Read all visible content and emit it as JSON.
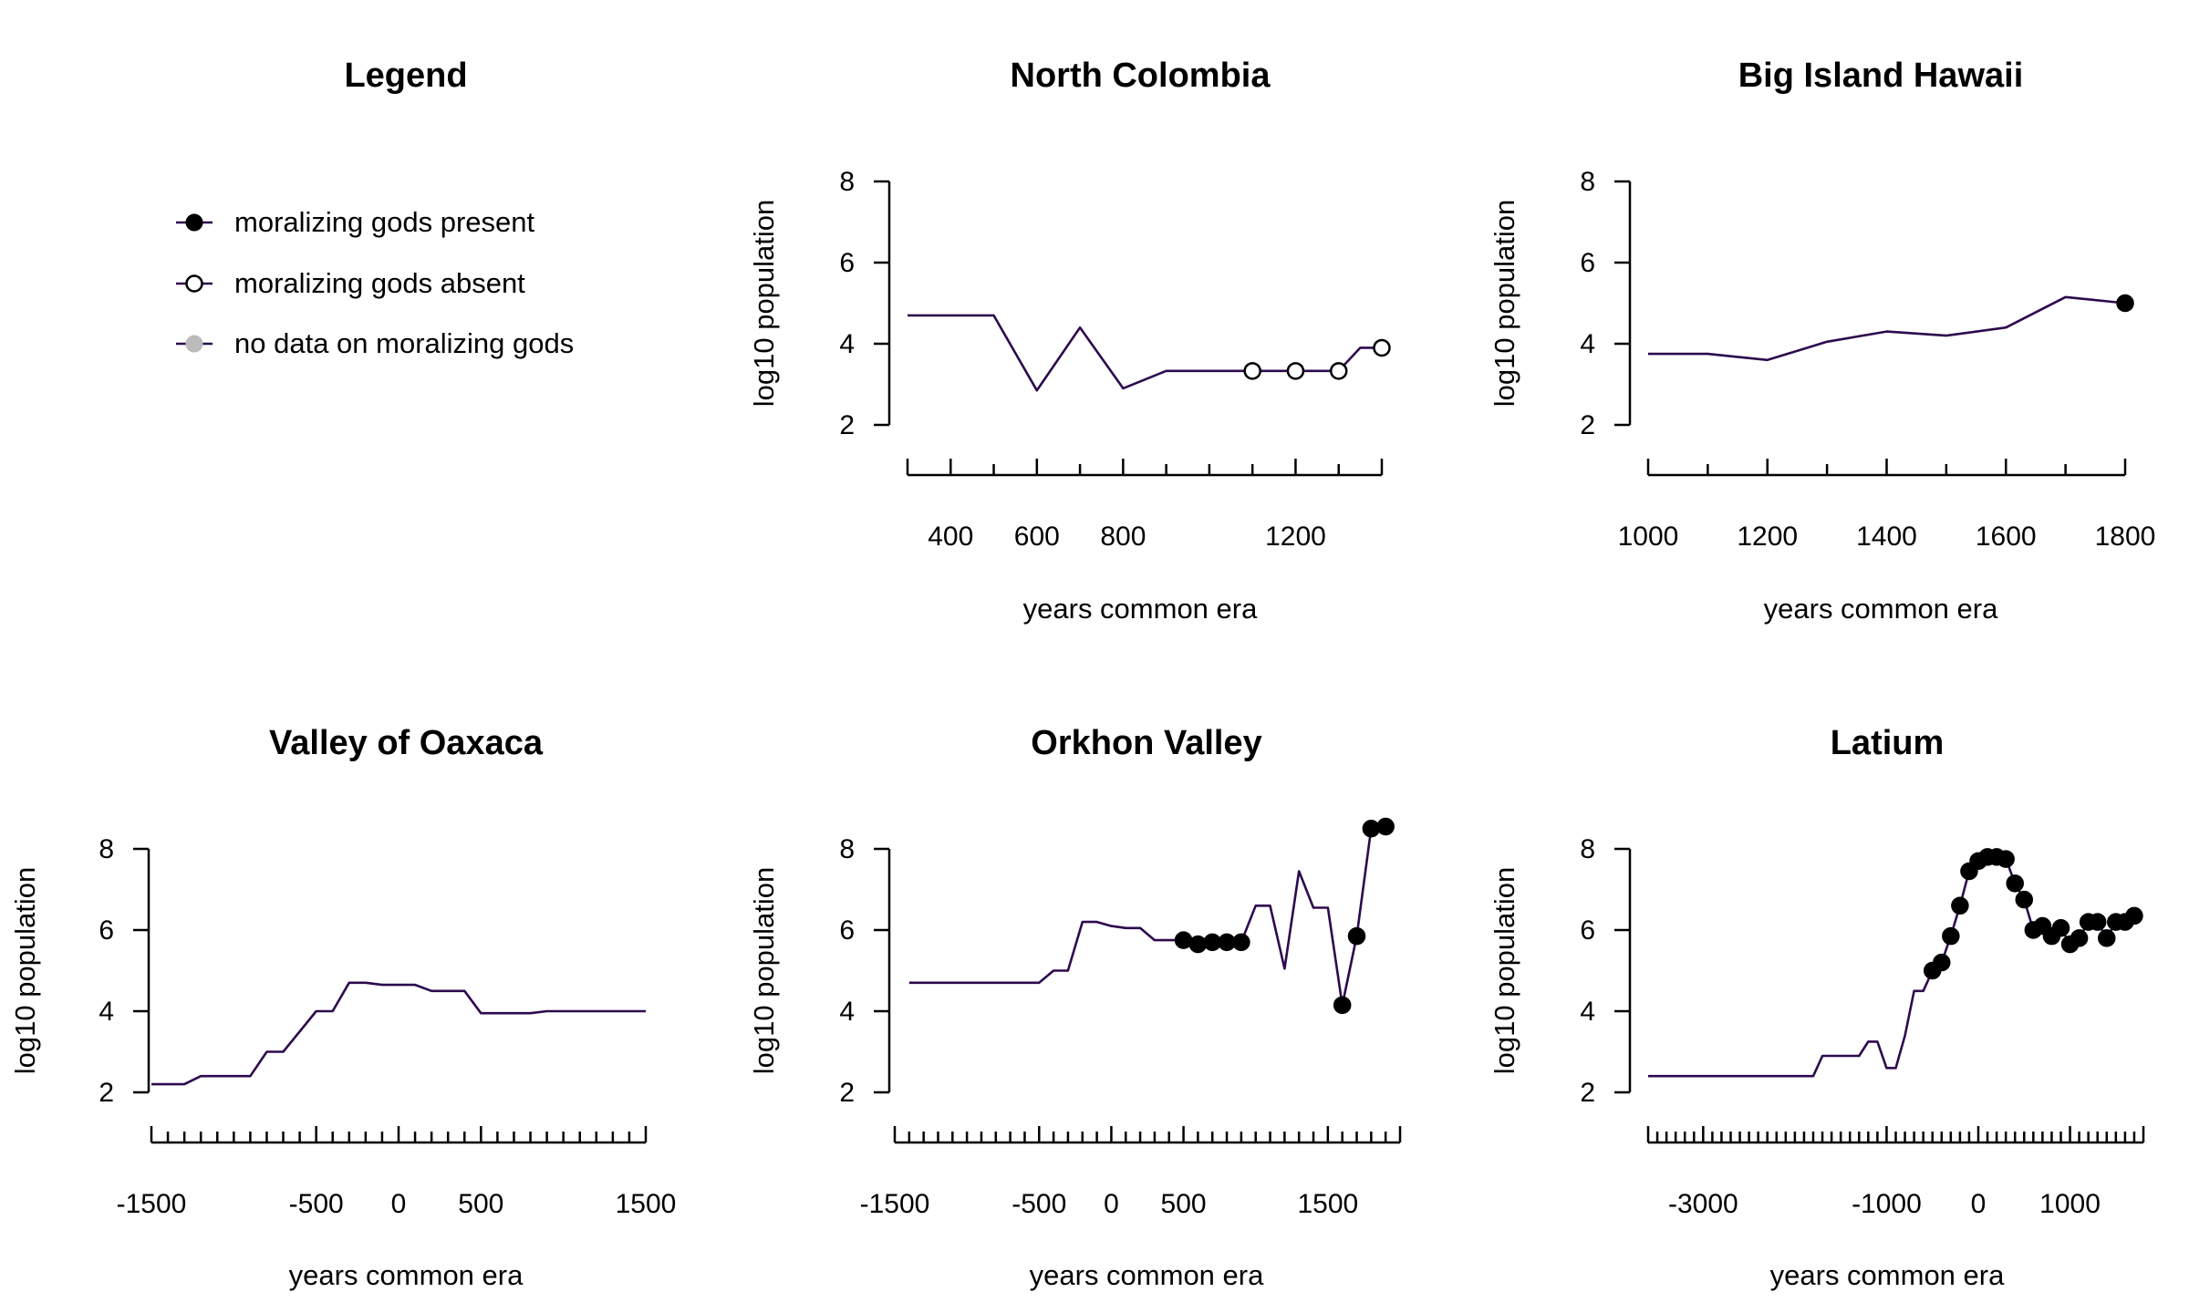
{
  "legend": {
    "title": "Legend",
    "items": [
      {
        "label": "moralizing gods present",
        "marker": "filled"
      },
      {
        "label": "moralizing gods absent",
        "marker": "open"
      },
      {
        "label": "no data on moralizing gods",
        "marker": "gray"
      }
    ]
  },
  "colors": {
    "line": "#2d0a4e",
    "present": "#000000",
    "absent": "#ffffff",
    "nodata": "#bbbbbb"
  },
  "chart_data": [
    {
      "type": "line",
      "title": "North Colombia",
      "xlabel": "years common era",
      "ylabel": "log10 population",
      "xlim": [
        300,
        1400
      ],
      "ylim": [
        2,
        8
      ],
      "xticks": [
        300,
        400,
        500,
        600,
        700,
        800,
        900,
        1000,
        1100,
        1200,
        1300,
        1400
      ],
      "xtick_labels": [
        {
          "v": 400,
          "t": "400"
        },
        {
          "v": 600,
          "t": "600"
        },
        {
          "v": 800,
          "t": "800"
        },
        {
          "v": 1200,
          "t": "1200"
        }
      ],
      "yticks": [
        2,
        4,
        6,
        8
      ],
      "x": [
        300,
        500,
        600,
        700,
        800,
        900,
        1000,
        1100,
        1200,
        1300,
        1350,
        1400
      ],
      "y": [
        4.7,
        4.7,
        2.85,
        4.4,
        2.9,
        3.33,
        3.33,
        3.33,
        3.33,
        3.33,
        3.9,
        3.9
      ],
      "markers": [
        {
          "x": 1100,
          "y": 3.33,
          "status": "absent"
        },
        {
          "x": 1200,
          "y": 3.33,
          "status": "absent"
        },
        {
          "x": 1300,
          "y": 3.33,
          "status": "absent"
        },
        {
          "x": 1400,
          "y": 3.9,
          "status": "absent"
        }
      ]
    },
    {
      "type": "line",
      "title": "Big Island Hawaii",
      "xlabel": "years common era",
      "ylabel": "log10 population",
      "xlim": [
        1000,
        1800
      ],
      "ylim": [
        2,
        8
      ],
      "xticks": [
        1000,
        1100,
        1200,
        1300,
        1400,
        1500,
        1600,
        1700,
        1800
      ],
      "xtick_labels": [
        {
          "v": 1000,
          "t": "1000"
        },
        {
          "v": 1200,
          "t": "1200"
        },
        {
          "v": 1400,
          "t": "1400"
        },
        {
          "v": 1600,
          "t": "1600"
        },
        {
          "v": 1800,
          "t": "1800"
        }
      ],
      "yticks": [
        2,
        4,
        6,
        8
      ],
      "x": [
        1000,
        1100,
        1200,
        1300,
        1400,
        1500,
        1600,
        1700,
        1800
      ],
      "y": [
        3.75,
        3.75,
        3.6,
        4.05,
        4.3,
        4.2,
        4.4,
        5.15,
        5.0
      ],
      "markers": [
        {
          "x": 1800,
          "y": 5.0,
          "status": "present"
        }
      ]
    },
    {
      "type": "line",
      "title": "Valley of Oaxaca",
      "xlabel": "years common era",
      "ylabel": "log10 population",
      "xlim": [
        -1500,
        1500
      ],
      "ylim": [
        2,
        8
      ],
      "xticks": [
        -1500,
        -1400,
        -1300,
        -1200,
        -1100,
        -1000,
        -900,
        -800,
        -700,
        -600,
        -500,
        -400,
        -300,
        -200,
        -100,
        0,
        100,
        200,
        300,
        400,
        500,
        600,
        700,
        800,
        900,
        1000,
        1100,
        1200,
        1300,
        1400,
        1500
      ],
      "xtick_labels": [
        {
          "v": -1500,
          "t": "-1500"
        },
        {
          "v": -500,
          "t": "-500"
        },
        {
          "v": 0,
          "t": "0"
        },
        {
          "v": 500,
          "t": "500"
        },
        {
          "v": 1500,
          "t": "1500"
        }
      ],
      "yticks": [
        2,
        4,
        6,
        8
      ],
      "x": [
        -1500,
        -1300,
        -1200,
        -900,
        -800,
        -700,
        -500,
        -400,
        -300,
        -200,
        -100,
        100,
        200,
        400,
        500,
        800,
        900,
        1500
      ],
      "y": [
        2.2,
        2.2,
        2.4,
        2.4,
        3.0,
        3.0,
        4.0,
        4.0,
        4.7,
        4.7,
        4.65,
        4.65,
        4.5,
        4.5,
        3.95,
        3.95,
        4.0,
        4.0
      ],
      "markers": []
    },
    {
      "type": "line",
      "title": "Orkhon Valley",
      "xlabel": "years common era",
      "ylabel": "log10 population",
      "xlim": [
        -1500,
        2000
      ],
      "ylim": [
        2,
        8
      ],
      "xticks": [
        -1500,
        -1400,
        -1300,
        -1200,
        -1100,
        -1000,
        -900,
        -800,
        -700,
        -600,
        -500,
        -400,
        -300,
        -200,
        -100,
        0,
        100,
        200,
        300,
        400,
        500,
        600,
        700,
        800,
        900,
        1000,
        1100,
        1200,
        1300,
        1400,
        1500,
        1600,
        1700,
        1800,
        1900,
        2000
      ],
      "xtick_labels": [
        {
          "v": -1500,
          "t": "-1500"
        },
        {
          "v": -500,
          "t": "-500"
        },
        {
          "v": 0,
          "t": "0"
        },
        {
          "v": 500,
          "t": "500"
        },
        {
          "v": 1500,
          "t": "1500"
        }
      ],
      "yticks": [
        2,
        4,
        6,
        8
      ],
      "x": [
        -1400,
        -500,
        -400,
        -300,
        -200,
        -100,
        0,
        100,
        200,
        300,
        400,
        500,
        600,
        700,
        800,
        900,
        1000,
        1100,
        1200,
        1300,
        1400,
        1500,
        1600,
        1700,
        1800,
        1900
      ],
      "y": [
        4.7,
        4.7,
        5.0,
        5.0,
        6.2,
        6.2,
        6.1,
        6.05,
        6.05,
        5.75,
        5.75,
        5.75,
        5.65,
        5.7,
        5.7,
        5.7,
        6.6,
        6.6,
        5.05,
        7.45,
        6.55,
        6.55,
        4.15,
        5.85,
        8.5,
        8.55
      ],
      "markers": [
        {
          "x": 500,
          "y": 5.75,
          "status": "present"
        },
        {
          "x": 600,
          "y": 5.65,
          "status": "present"
        },
        {
          "x": 700,
          "y": 5.7,
          "status": "present"
        },
        {
          "x": 800,
          "y": 5.7,
          "status": "present"
        },
        {
          "x": 900,
          "y": 5.7,
          "status": "present"
        },
        {
          "x": 1600,
          "y": 4.15,
          "status": "present"
        },
        {
          "x": 1700,
          "y": 5.85,
          "status": "present"
        },
        {
          "x": 1800,
          "y": 8.5,
          "status": "present"
        },
        {
          "x": 1900,
          "y": 8.55,
          "status": "present"
        }
      ]
    },
    {
      "type": "line",
      "title": "Latium",
      "xlabel": "years common era",
      "ylabel": "log10 population",
      "xlim": [
        -3600,
        1800
      ],
      "ylim": [
        2,
        8
      ],
      "xticks": [
        -3600,
        -3500,
        -3400,
        -3300,
        -3200,
        -3100,
        -3000,
        -2900,
        -2800,
        -2700,
        -2600,
        -2500,
        -2400,
        -2300,
        -2200,
        -2100,
        -2000,
        -1900,
        -1800,
        -1700,
        -1600,
        -1500,
        -1400,
        -1300,
        -1200,
        -1100,
        -1000,
        -900,
        -800,
        -700,
        -600,
        -500,
        -400,
        -300,
        -200,
        -100,
        0,
        100,
        200,
        300,
        400,
        500,
        600,
        700,
        800,
        900,
        1000,
        1100,
        1200,
        1300,
        1400,
        1500,
        1600,
        1700,
        1800
      ],
      "xtick_labels": [
        {
          "v": -3000,
          "t": "-3000"
        },
        {
          "v": -1000,
          "t": "-1000"
        },
        {
          "v": 0,
          "t": "0"
        },
        {
          "v": 1000,
          "t": "1000"
        }
      ],
      "yticks": [
        2,
        4,
        6,
        8
      ],
      "x": [
        -3600,
        -1800,
        -1700,
        -1300,
        -1200,
        -1100,
        -1000,
        -900,
        -800,
        -700,
        -600,
        -500,
        -400,
        -300,
        -200,
        -100,
        0,
        100,
        200,
        300,
        400,
        500,
        600,
        700,
        800,
        900,
        1000,
        1100,
        1200,
        1300,
        1400,
        1500,
        1600,
        1700
      ],
      "y": [
        2.4,
        2.4,
        2.9,
        2.9,
        3.25,
        3.25,
        2.6,
        2.6,
        3.4,
        4.5,
        4.5,
        5.0,
        5.2,
        5.85,
        6.6,
        7.45,
        7.7,
        7.8,
        7.8,
        7.75,
        7.15,
        6.75,
        6.0,
        6.1,
        5.85,
        6.05,
        5.65,
        5.8,
        6.2,
        6.2,
        5.8,
        6.2,
        6.2,
        6.35
      ],
      "markers": [
        {
          "x": -500,
          "y": 5.0,
          "status": "present"
        },
        {
          "x": -400,
          "y": 5.2,
          "status": "present"
        },
        {
          "x": -300,
          "y": 5.85,
          "status": "present"
        },
        {
          "x": -200,
          "y": 6.6,
          "status": "present"
        },
        {
          "x": -100,
          "y": 7.45,
          "status": "present"
        },
        {
          "x": 0,
          "y": 7.7,
          "status": "present"
        },
        {
          "x": 100,
          "y": 7.8,
          "status": "present"
        },
        {
          "x": 200,
          "y": 7.8,
          "status": "present"
        },
        {
          "x": 300,
          "y": 7.75,
          "status": "present"
        },
        {
          "x": 400,
          "y": 7.15,
          "status": "present"
        },
        {
          "x": 500,
          "y": 6.75,
          "status": "present"
        },
        {
          "x": 600,
          "y": 6.0,
          "status": "present"
        },
        {
          "x": 700,
          "y": 6.1,
          "status": "present"
        },
        {
          "x": 800,
          "y": 5.85,
          "status": "present"
        },
        {
          "x": 900,
          "y": 6.05,
          "status": "present"
        },
        {
          "x": 1000,
          "y": 5.65,
          "status": "present"
        },
        {
          "x": 1100,
          "y": 5.8,
          "status": "present"
        },
        {
          "x": 1200,
          "y": 6.2,
          "status": "present"
        },
        {
          "x": 1300,
          "y": 6.2,
          "status": "present"
        },
        {
          "x": 1400,
          "y": 5.8,
          "status": "present"
        },
        {
          "x": 1500,
          "y": 6.2,
          "status": "present"
        },
        {
          "x": 1600,
          "y": 6.2,
          "status": "present"
        },
        {
          "x": 1700,
          "y": 6.35,
          "status": "present"
        }
      ]
    }
  ]
}
